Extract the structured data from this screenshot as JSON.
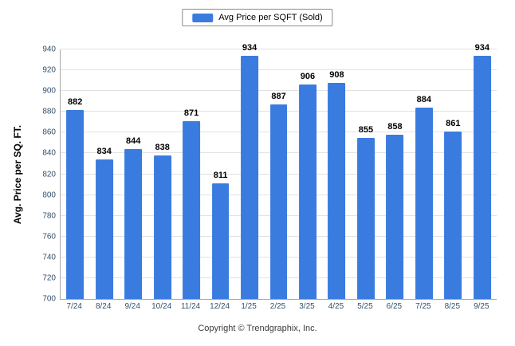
{
  "legend": {
    "label": "Avg Price per SQFT (Sold)",
    "swatch_color": "#3a7be0"
  },
  "chart_data": {
    "type": "bar",
    "title": "",
    "xlabel": "",
    "ylabel": "Avg. Price per SQ. FT.",
    "categories": [
      "7/24",
      "8/24",
      "9/24",
      "10/24",
      "11/24",
      "12/24",
      "1/25",
      "2/25",
      "3/25",
      "4/25",
      "5/25",
      "6/25",
      "7/25",
      "8/25",
      "9/25"
    ],
    "values": [
      882,
      834,
      844,
      838,
      871,
      811,
      934,
      887,
      906,
      908,
      855,
      858,
      884,
      861,
      934
    ],
    "ylim": [
      700,
      940
    ],
    "yticks": [
      700,
      720,
      740,
      760,
      780,
      800,
      820,
      840,
      860,
      880,
      900,
      920,
      940
    ],
    "grid": true,
    "legend_position": "top",
    "bar_color": "#3a7be0",
    "axis_label_color": "#33506b"
  },
  "footer": {
    "copyright": "Copyright © Trendgraphix, Inc."
  }
}
